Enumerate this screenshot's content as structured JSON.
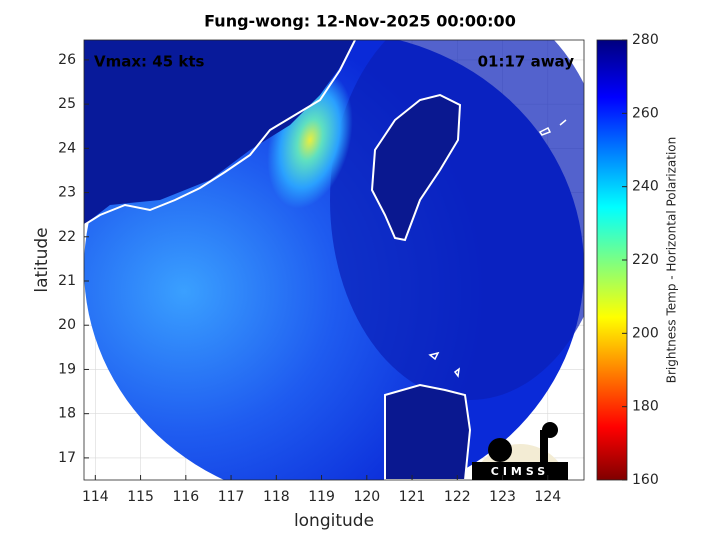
{
  "chart_data": {
    "type": "map",
    "title": "Fung-wong: 12-Nov-2025 00:00:00",
    "xlabel": "longitude",
    "ylabel": "latitude",
    "annotations": [
      "Vmax: 45 kts",
      "01:17 away"
    ],
    "xlim": [
      113.75,
      124.8
    ],
    "ylim": [
      16.5,
      26.45
    ],
    "xticks": [
      114,
      115,
      116,
      117,
      118,
      119,
      120,
      121,
      122,
      123,
      124
    ],
    "yticks": [
      17,
      18,
      19,
      20,
      21,
      22,
      23,
      24,
      25,
      26
    ],
    "grid": true,
    "colorbar": {
      "label": "Brightness Temp - Horizontal Polarization",
      "clim": [
        160,
        280
      ],
      "ticks": [
        160,
        180,
        200,
        220,
        240,
        260,
        280
      ]
    },
    "logo": "CIMSS"
  }
}
